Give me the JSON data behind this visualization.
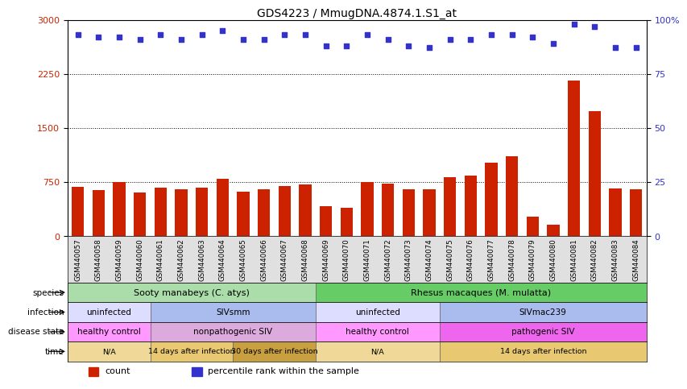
{
  "title": "GDS4223 / MmugDNA.4874.1.S1_at",
  "samples": [
    "GSM440057",
    "GSM440058",
    "GSM440059",
    "GSM440060",
    "GSM440061",
    "GSM440062",
    "GSM440063",
    "GSM440064",
    "GSM440065",
    "GSM440066",
    "GSM440067",
    "GSM440068",
    "GSM440069",
    "GSM440070",
    "GSM440071",
    "GSM440072",
    "GSM440073",
    "GSM440074",
    "GSM440075",
    "GSM440076",
    "GSM440077",
    "GSM440078",
    "GSM440079",
    "GSM440080",
    "GSM440081",
    "GSM440082",
    "GSM440083",
    "GSM440084"
  ],
  "counts": [
    680,
    640,
    750,
    610,
    675,
    645,
    675,
    795,
    615,
    655,
    700,
    715,
    410,
    390,
    745,
    730,
    645,
    655,
    820,
    835,
    1020,
    1110,
    275,
    155,
    2160,
    1730,
    665,
    645
  ],
  "percentile_ranks": [
    93,
    92,
    92,
    91,
    93,
    91,
    93,
    95,
    91,
    91,
    93,
    93,
    88,
    88,
    93,
    91,
    88,
    87,
    91,
    91,
    93,
    93,
    92,
    89,
    98,
    97,
    87,
    87
  ],
  "bar_color": "#cc2200",
  "dot_color": "#3333cc",
  "left_yticks": [
    0,
    750,
    1500,
    2250,
    3000
  ],
  "right_yticks": [
    0,
    25,
    50,
    75,
    100
  ],
  "hlines": [
    750,
    1500,
    2250
  ],
  "species_rows": [
    {
      "label": "Sooty manabeys (C. atys)",
      "start": 0,
      "end": 12,
      "color": "#aaddaa"
    },
    {
      "label": "Rhesus macaques (M. mulatta)",
      "start": 12,
      "end": 28,
      "color": "#66cc66"
    }
  ],
  "infection_rows": [
    {
      "label": "uninfected",
      "start": 0,
      "end": 4,
      "color": "#ddddff"
    },
    {
      "label": "SIVsmm",
      "start": 4,
      "end": 12,
      "color": "#aabbee"
    },
    {
      "label": "uninfected",
      "start": 12,
      "end": 18,
      "color": "#ddddff"
    },
    {
      "label": "SIVmac239",
      "start": 18,
      "end": 28,
      "color": "#aabbee"
    }
  ],
  "disease_rows": [
    {
      "label": "healthy control",
      "start": 0,
      "end": 4,
      "color": "#ff99ff"
    },
    {
      "label": "nonpathogenic SIV",
      "start": 4,
      "end": 12,
      "color": "#ddaadd"
    },
    {
      "label": "healthy control",
      "start": 12,
      "end": 18,
      "color": "#ff99ff"
    },
    {
      "label": "pathogenic SIV",
      "start": 18,
      "end": 28,
      "color": "#ee66ee"
    }
  ],
  "time_rows": [
    {
      "label": "N/A",
      "start": 0,
      "end": 4,
      "color": "#f0d898"
    },
    {
      "label": "14 days after infection",
      "start": 4,
      "end": 8,
      "color": "#e8c870"
    },
    {
      "label": "30 days after infection",
      "start": 8,
      "end": 12,
      "color": "#c8a040"
    },
    {
      "label": "N/A",
      "start": 12,
      "end": 18,
      "color": "#f0d898"
    },
    {
      "label": "14 days after infection",
      "start": 18,
      "end": 28,
      "color": "#e8c870"
    }
  ],
  "row_labels": [
    "species",
    "infection",
    "disease state",
    "time"
  ],
  "row_label_arrows": true,
  "ylim_left": [
    0,
    3000
  ],
  "ylim_right": [
    0,
    100
  ],
  "fig_bg": "#ffffff",
  "plot_bg": "#ffffff",
  "xtick_bg": "#e0e0e0"
}
